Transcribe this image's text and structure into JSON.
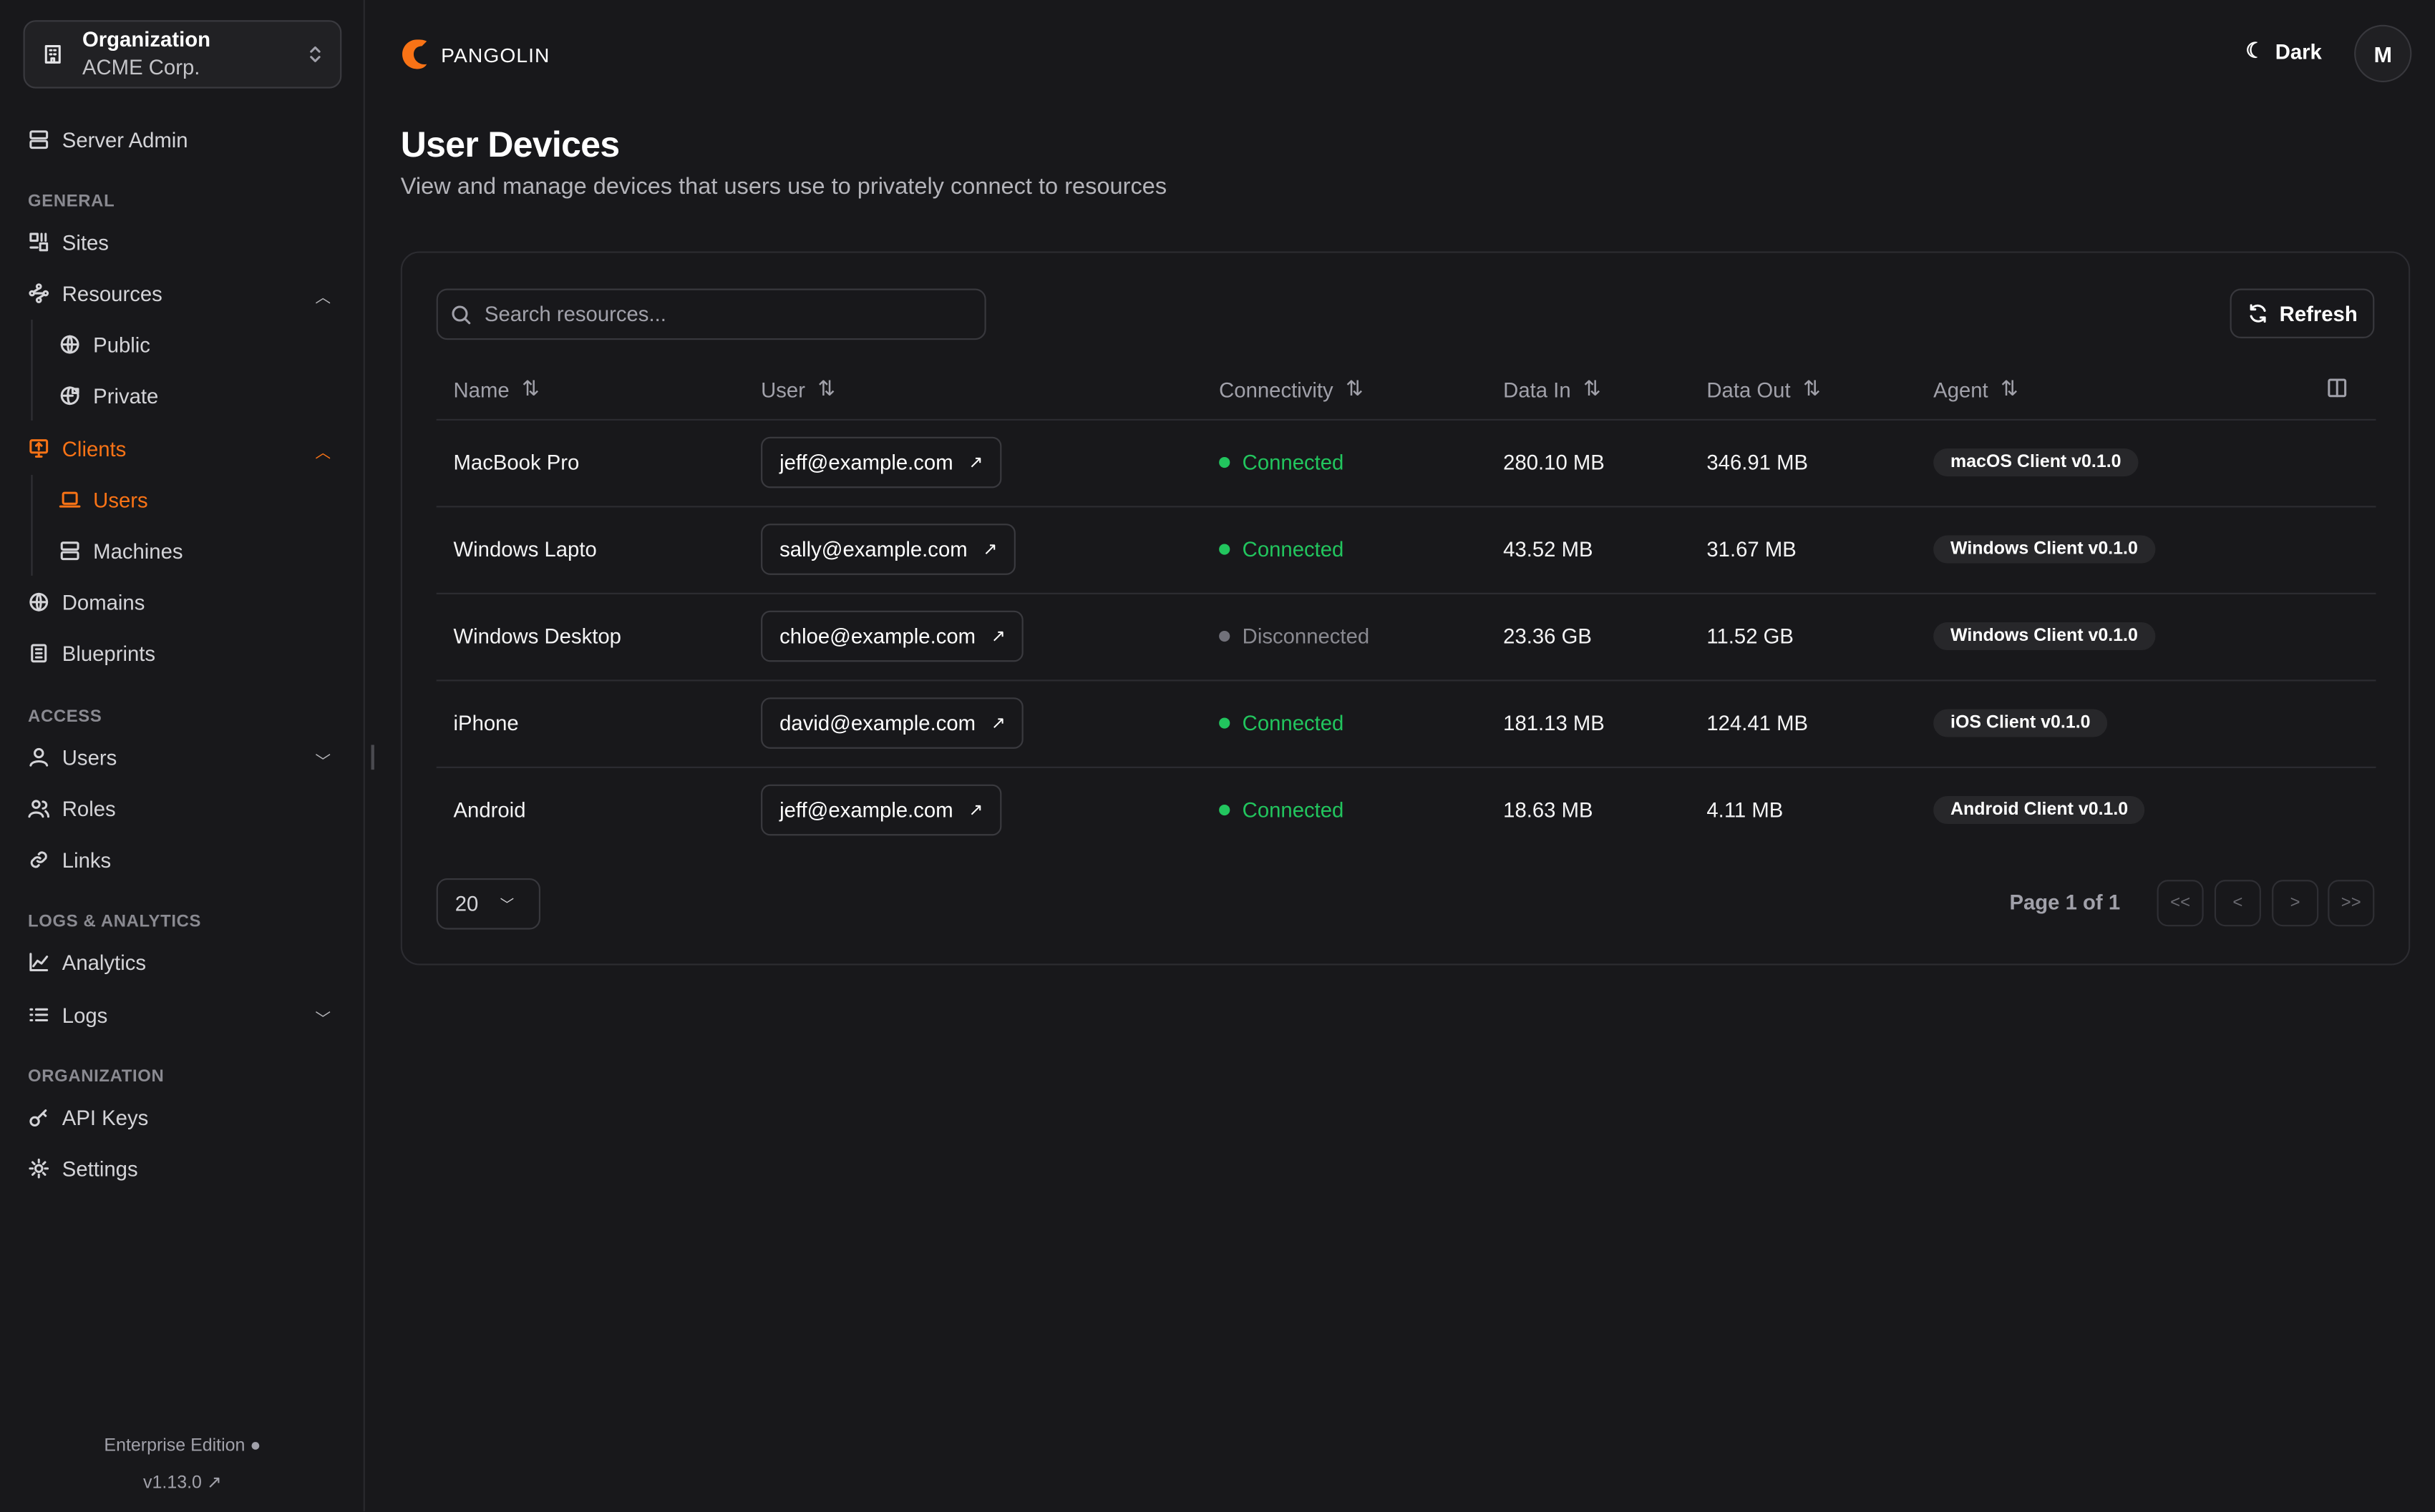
{
  "colors": {
    "accent": "#f97316",
    "connected": "#22c55e",
    "disconnected": "#71717a",
    "background": "#18181b"
  },
  "org": {
    "label": "Organization",
    "name": "ACME Corp."
  },
  "sidebar": {
    "server_admin": "Server Admin",
    "sections": {
      "general": "GENERAL",
      "access": "ACCESS",
      "logs": "LOGS & ANALYTICS",
      "organization": "ORGANIZATION"
    },
    "items": {
      "sites": "Sites",
      "resources": "Resources",
      "public": "Public",
      "private": "Private",
      "clients": "Clients",
      "users": "Users",
      "machines": "Machines",
      "domains": "Domains",
      "blueprints": "Blueprints",
      "access_users": "Users",
      "roles": "Roles",
      "links": "Links",
      "analytics": "Analytics",
      "logs": "Logs",
      "api_keys": "API Keys",
      "settings": "Settings"
    },
    "active_item": "Users",
    "edition": "Enterprise Edition",
    "version": "v1.13.0"
  },
  "header": {
    "brand": "PANGOLIN",
    "theme_label": "Dark",
    "avatar": "M"
  },
  "page": {
    "title": "User Devices",
    "subtitle": "View and manage devices that users use to privately connect to resources"
  },
  "search": {
    "placeholder": "Search resources...",
    "value": ""
  },
  "toolbar": {
    "refresh": "Refresh"
  },
  "table": {
    "columns": [
      "Name",
      "User",
      "Connectivity",
      "Data In",
      "Data Out",
      "Agent"
    ],
    "rows": [
      {
        "name": "MacBook Pro",
        "user": "jeff@example.com",
        "status": "Connected",
        "data_in": "280.10 MB",
        "data_out": "346.91 MB",
        "agent": "macOS Client v0.1.0"
      },
      {
        "name": "Windows Lapto",
        "user": "sally@example.com",
        "status": "Connected",
        "data_in": "43.52 MB",
        "data_out": "31.67 MB",
        "agent": "Windows Client v0.1.0"
      },
      {
        "name": "Windows Desktop",
        "user": "chloe@example.com",
        "status": "Disconnected",
        "data_in": "23.36 GB",
        "data_out": "11.52 GB",
        "agent": "Windows Client v0.1.0"
      },
      {
        "name": "iPhone",
        "user": "david@example.com",
        "status": "Connected",
        "data_in": "181.13 MB",
        "data_out": "124.41 MB",
        "agent": "iOS Client v0.1.0"
      },
      {
        "name": "Android",
        "user": "jeff@example.com",
        "status": "Connected",
        "data_in": "18.63 MB",
        "data_out": "4.11 MB",
        "agent": "Android Client v0.1.0"
      }
    ]
  },
  "pagination": {
    "page_size": "20",
    "page_text": "Page 1 of 1",
    "first": "<<",
    "prev": "<",
    "next": ">",
    "last": ">>"
  }
}
